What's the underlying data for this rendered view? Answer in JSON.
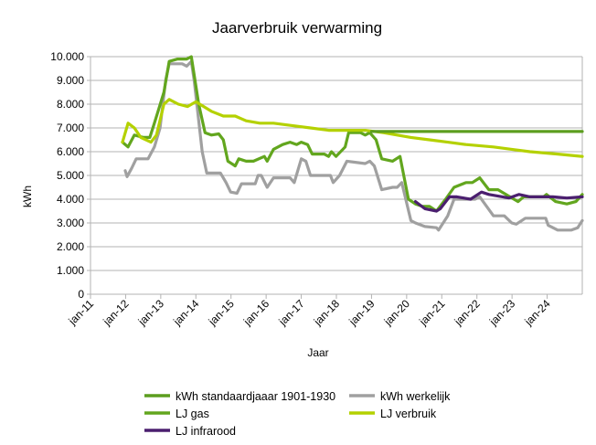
{
  "chart_data": {
    "type": "line",
    "title": "Jaarverbruik verwarming",
    "xlabel": "Jaar",
    "ylabel": "kWh",
    "ylim": [
      0,
      10000
    ],
    "xlim": [
      2011,
      2025
    ],
    "grid": true,
    "legend_position": "bottom",
    "y_ticks": [
      {
        "value": 0,
        "label": "0"
      },
      {
        "value": 1000,
        "label": "1.000"
      },
      {
        "value": 2000,
        "label": "2.000"
      },
      {
        "value": 3000,
        "label": "3.000"
      },
      {
        "value": 4000,
        "label": "4.000"
      },
      {
        "value": 5000,
        "label": "5.000"
      },
      {
        "value": 6000,
        "label": "6.000"
      },
      {
        "value": 7000,
        "label": "7.000"
      },
      {
        "value": 8000,
        "label": "8.000"
      },
      {
        "value": 9000,
        "label": "9.000"
      },
      {
        "value": 10000,
        "label": "10.000"
      }
    ],
    "x_ticks": [
      {
        "value": 2011,
        "label": "jan-11"
      },
      {
        "value": 2012,
        "label": "jan-12"
      },
      {
        "value": 2013,
        "label": "jan-13"
      },
      {
        "value": 2014,
        "label": "jan-14"
      },
      {
        "value": 2015,
        "label": "jan-15"
      },
      {
        "value": 2016,
        "label": "jan-16"
      },
      {
        "value": 2017,
        "label": "jan-17"
      },
      {
        "value": 2018,
        "label": "jan-18"
      },
      {
        "value": 2019,
        "label": "jan-19"
      },
      {
        "value": 2020,
        "label": "jan-20"
      },
      {
        "value": 2021,
        "label": "jan-21"
      },
      {
        "value": 2022,
        "label": "jan-22"
      },
      {
        "value": 2023,
        "label": "jan-23"
      },
      {
        "value": 2024,
        "label": "jan-24"
      }
    ],
    "series": [
      {
        "name": "kWh standaardjaaar 1901-1930",
        "color": "#5c9e1f",
        "points": [
          [
            2019.0,
            6850
          ],
          [
            2025.0,
            6850
          ]
        ]
      },
      {
        "name": "kWh werkelijk",
        "color": "#a0a0a0",
        "points": [
          [
            2011.99,
            5200
          ],
          [
            2012.04,
            4950
          ],
          [
            2012.17,
            5300
          ],
          [
            2012.3,
            5700
          ],
          [
            2012.64,
            5700
          ],
          [
            2012.82,
            6200
          ],
          [
            2012.98,
            7000
          ],
          [
            2013.14,
            9000
          ],
          [
            2013.24,
            9700
          ],
          [
            2013.61,
            9700
          ],
          [
            2013.74,
            9600
          ],
          [
            2013.87,
            9800
          ],
          [
            2013.95,
            9000
          ],
          [
            2014.18,
            6000
          ],
          [
            2014.31,
            5100
          ],
          [
            2014.7,
            5100
          ],
          [
            2014.86,
            4700
          ],
          [
            2014.99,
            4300
          ],
          [
            2015.17,
            4250
          ],
          [
            2015.3,
            4650
          ],
          [
            2015.69,
            4650
          ],
          [
            2015.77,
            5000
          ],
          [
            2015.86,
            5000
          ],
          [
            2016.03,
            4500
          ],
          [
            2016.21,
            4900
          ],
          [
            2016.68,
            4900
          ],
          [
            2016.8,
            4700
          ],
          [
            2017.0,
            5700
          ],
          [
            2017.13,
            5600
          ],
          [
            2017.26,
            5000
          ],
          [
            2017.83,
            5000
          ],
          [
            2017.91,
            4700
          ],
          [
            2018.09,
            5000
          ],
          [
            2018.3,
            5600
          ],
          [
            2018.82,
            5500
          ],
          [
            2018.95,
            5600
          ],
          [
            2019.08,
            5400
          ],
          [
            2019.29,
            4400
          ],
          [
            2019.6,
            4500
          ],
          [
            2019.73,
            4500
          ],
          [
            2019.86,
            4700
          ],
          [
            2020.12,
            3100
          ],
          [
            2020.25,
            3000
          ],
          [
            2020.52,
            2850
          ],
          [
            2020.85,
            2800
          ],
          [
            2020.91,
            2700
          ],
          [
            2021.17,
            3300
          ],
          [
            2021.35,
            4000
          ],
          [
            2021.95,
            4000
          ],
          [
            2022.08,
            4100
          ],
          [
            2022.47,
            3300
          ],
          [
            2022.78,
            3300
          ],
          [
            2022.99,
            3000
          ],
          [
            2023.12,
            2950
          ],
          [
            2023.38,
            3200
          ],
          [
            2023.96,
            3200
          ],
          [
            2024.03,
            2900
          ],
          [
            2024.3,
            2700
          ],
          [
            2024.69,
            2700
          ],
          [
            2024.87,
            2800
          ],
          [
            2025.0,
            3100
          ]
        ]
      },
      {
        "name": "LJ gas",
        "color": "#62a61e",
        "points": [
          [
            2011.91,
            6400
          ],
          [
            2012.07,
            6200
          ],
          [
            2012.25,
            6700
          ],
          [
            2012.51,
            6600
          ],
          [
            2012.69,
            6600
          ],
          [
            2012.82,
            7200
          ],
          [
            2013.09,
            8500
          ],
          [
            2013.24,
            9800
          ],
          [
            2013.48,
            9900
          ],
          [
            2013.74,
            9900
          ],
          [
            2013.87,
            10000
          ],
          [
            2014.08,
            8000
          ],
          [
            2014.26,
            6800
          ],
          [
            2014.44,
            6700
          ],
          [
            2014.65,
            6750
          ],
          [
            2014.78,
            6500
          ],
          [
            2014.91,
            5600
          ],
          [
            2015.12,
            5400
          ],
          [
            2015.22,
            5700
          ],
          [
            2015.43,
            5600
          ],
          [
            2015.64,
            5600
          ],
          [
            2015.95,
            5800
          ],
          [
            2016.03,
            5600
          ],
          [
            2016.21,
            6100
          ],
          [
            2016.47,
            6300
          ],
          [
            2016.68,
            6400
          ],
          [
            2016.87,
            6300
          ],
          [
            2017.0,
            6400
          ],
          [
            2017.18,
            6300
          ],
          [
            2017.31,
            5900
          ],
          [
            2017.65,
            5900
          ],
          [
            2017.78,
            5800
          ],
          [
            2017.86,
            6000
          ],
          [
            2017.99,
            5800
          ],
          [
            2018.25,
            6200
          ],
          [
            2018.35,
            6800
          ],
          [
            2018.69,
            6800
          ],
          [
            2018.82,
            6700
          ],
          [
            2018.95,
            6800
          ],
          [
            2019.13,
            6500
          ],
          [
            2019.29,
            5700
          ],
          [
            2019.6,
            5600
          ],
          [
            2019.81,
            5800
          ],
          [
            2020.05,
            4000
          ],
          [
            2020.25,
            3800
          ],
          [
            2020.44,
            3700
          ],
          [
            2020.65,
            3700
          ],
          [
            2020.85,
            3500
          ],
          [
            2021.11,
            4000
          ],
          [
            2021.35,
            4500
          ],
          [
            2021.69,
            4700
          ],
          [
            2021.87,
            4700
          ],
          [
            2022.08,
            4900
          ],
          [
            2022.34,
            4400
          ],
          [
            2022.6,
            4400
          ],
          [
            2022.94,
            4100
          ],
          [
            2023.17,
            3900
          ],
          [
            2023.33,
            4100
          ],
          [
            2023.9,
            4100
          ],
          [
            2023.98,
            4200
          ],
          [
            2024.24,
            3900
          ],
          [
            2024.56,
            3800
          ],
          [
            2024.82,
            3900
          ],
          [
            2025.0,
            4200
          ]
        ]
      },
      {
        "name": "LJ verbruik",
        "color": "#b4d100",
        "points": [
          [
            2011.91,
            6400
          ],
          [
            2012.07,
            7200
          ],
          [
            2012.25,
            7000
          ],
          [
            2012.43,
            6600
          ],
          [
            2012.72,
            6400
          ],
          [
            2012.88,
            6700
          ],
          [
            2013.09,
            8000
          ],
          [
            2013.24,
            8200
          ],
          [
            2013.5,
            8000
          ],
          [
            2013.76,
            7900
          ],
          [
            2014.0,
            8100
          ],
          [
            2014.44,
            7700
          ],
          [
            2014.78,
            7500
          ],
          [
            2015.12,
            7500
          ],
          [
            2015.43,
            7300
          ],
          [
            2015.82,
            7200
          ],
          [
            2016.21,
            7200
          ],
          [
            2016.74,
            7100
          ],
          [
            2017.26,
            7000
          ],
          [
            2017.78,
            6900
          ],
          [
            2018.3,
            6900
          ],
          [
            2018.82,
            6900
          ],
          [
            2019.34,
            6800
          ],
          [
            2020.12,
            6600
          ],
          [
            2020.65,
            6500
          ],
          [
            2021.17,
            6400
          ],
          [
            2021.69,
            6300
          ],
          [
            2022.47,
            6200
          ],
          [
            2022.99,
            6100
          ],
          [
            2023.51,
            6000
          ],
          [
            2024.3,
            5900
          ],
          [
            2025.0,
            5800
          ]
        ]
      },
      {
        "name": "LJ infrarood",
        "color": "#4b1f6f",
        "points": [
          [
            2020.25,
            3900
          ],
          [
            2020.52,
            3600
          ],
          [
            2020.85,
            3500
          ],
          [
            2020.96,
            3600
          ],
          [
            2021.22,
            4100
          ],
          [
            2021.43,
            4100
          ],
          [
            2021.82,
            4000
          ],
          [
            2022.13,
            4300
          ],
          [
            2022.34,
            4200
          ],
          [
            2022.73,
            4100
          ],
          [
            2022.91,
            4050
          ],
          [
            2023.2,
            4200
          ],
          [
            2023.51,
            4100
          ],
          [
            2024.16,
            4100
          ],
          [
            2024.56,
            4050
          ],
          [
            2025.0,
            4100
          ]
        ]
      }
    ]
  }
}
